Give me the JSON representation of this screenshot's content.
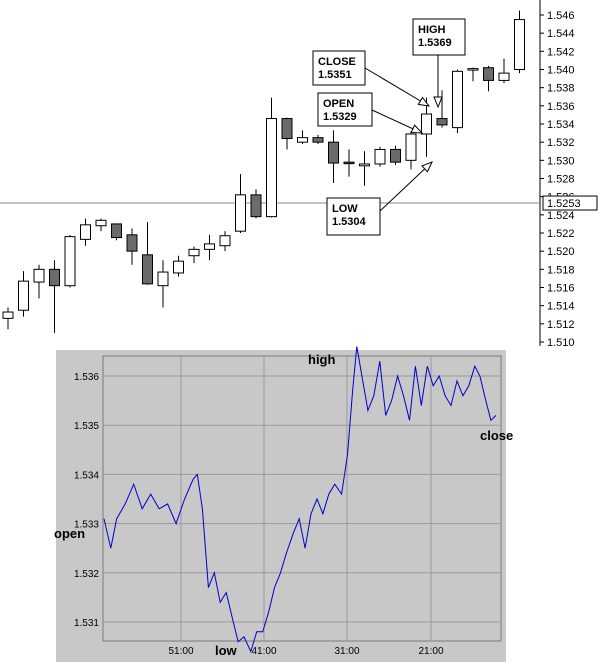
{
  "chart_data": [
    {
      "type": "candlestick",
      "y_ticks": [
        "1.546",
        "1.544",
        "1.542",
        "1.540",
        "1.538",
        "1.536",
        "1.534",
        "1.532",
        "1.530",
        "1.528",
        "1.526",
        "1.524",
        "1.522",
        "1.520",
        "1.518",
        "1.516",
        "1.514",
        "1.512",
        "1.510"
      ],
      "ylim": [
        1.51,
        1.547
      ],
      "price_marker": "1.5253",
      "candles": [
        {
          "o": 1.5126,
          "h": 1.5138,
          "l": 1.5114,
          "c": 1.5133
        },
        {
          "o": 1.5135,
          "h": 1.5178,
          "l": 1.5128,
          "c": 1.5167
        },
        {
          "o": 1.5166,
          "h": 1.5185,
          "l": 1.5148,
          "c": 1.518
        },
        {
          "o": 1.518,
          "h": 1.519,
          "l": 1.511,
          "c": 1.5162
        },
        {
          "o": 1.5162,
          "h": 1.5218,
          "l": 1.516,
          "c": 1.5216
        },
        {
          "o": 1.5213,
          "h": 1.5236,
          "l": 1.5206,
          "c": 1.5229
        },
        {
          "o": 1.5228,
          "h": 1.5236,
          "l": 1.5222,
          "c": 1.5234
        },
        {
          "o": 1.523,
          "h": 1.523,
          "l": 1.5212,
          "c": 1.5215
        },
        {
          "o": 1.5218,
          "h": 1.5225,
          "l": 1.5185,
          "c": 1.52
        },
        {
          "o": 1.5196,
          "h": 1.5232,
          "l": 1.5163,
          "c": 1.5164
        },
        {
          "o": 1.5162,
          "h": 1.519,
          "l": 1.5138,
          "c": 1.5177
        },
        {
          "o": 1.5176,
          "h": 1.5195,
          "l": 1.5172,
          "c": 1.5189
        },
        {
          "o": 1.5195,
          "h": 1.5205,
          "l": 1.5187,
          "c": 1.5202
        },
        {
          "o": 1.5202,
          "h": 1.5218,
          "l": 1.519,
          "c": 1.5208
        },
        {
          "o": 1.5206,
          "h": 1.5222,
          "l": 1.52,
          "c": 1.5217
        },
        {
          "o": 1.5222,
          "h": 1.5285,
          "l": 1.522,
          "c": 1.5262
        },
        {
          "o": 1.5262,
          "h": 1.5268,
          "l": 1.5236,
          "c": 1.5238
        },
        {
          "o": 1.5238,
          "h": 1.5369,
          "l": 1.5237,
          "c": 1.5346
        },
        {
          "o": 1.5346,
          "h": 1.5347,
          "l": 1.5312,
          "c": 1.5324
        },
        {
          "o": 1.532,
          "h": 1.5333,
          "l": 1.5318,
          "c": 1.5325
        },
        {
          "o": 1.5325,
          "h": 1.5328,
          "l": 1.5318,
          "c": 1.532
        },
        {
          "o": 1.532,
          "h": 1.5333,
          "l": 1.5275,
          "c": 1.5297
        },
        {
          "o": 1.5298,
          "h": 1.5312,
          "l": 1.5282,
          "c": 1.5297
        },
        {
          "o": 1.5294,
          "h": 1.531,
          "l": 1.5272,
          "c": 1.5296
        },
        {
          "o": 1.5296,
          "h": 1.5315,
          "l": 1.5293,
          "c": 1.5312
        },
        {
          "o": 1.5312,
          "h": 1.5316,
          "l": 1.5295,
          "c": 1.5298
        },
        {
          "o": 1.53,
          "h": 1.5332,
          "l": 1.529,
          "c": 1.5329
        },
        {
          "o": 1.5329,
          "h": 1.5369,
          "l": 1.5304,
          "c": 1.5351
        },
        {
          "o": 1.5346,
          "h": 1.5377,
          "l": 1.5336,
          "c": 1.5339
        },
        {
          "o": 1.5336,
          "h": 1.54,
          "l": 1.533,
          "c": 1.5398
        },
        {
          "o": 1.54,
          "h": 1.5402,
          "l": 1.5387,
          "c": 1.5401
        },
        {
          "o": 1.5402,
          "h": 1.5404,
          "l": 1.5376,
          "c": 1.5388
        },
        {
          "o": 1.5388,
          "h": 1.5412,
          "l": 1.5385,
          "c": 1.5396
        },
        {
          "o": 1.54,
          "h": 1.5465,
          "l": 1.5396,
          "c": 1.5455
        }
      ],
      "annotations": [
        {
          "name": "close",
          "title": "CLOSE",
          "value": "1.5351"
        },
        {
          "name": "high",
          "title": "HIGH",
          "value": "1.5369"
        },
        {
          "name": "open",
          "title": "OPEN",
          "value": "1.5329"
        },
        {
          "name": "low",
          "title": "LOW",
          "value": "1.5304"
        }
      ]
    },
    {
      "type": "line",
      "y_ticks": [
        "1.536",
        "1.535",
        "1.534",
        "1.533",
        "1.532",
        "1.531"
      ],
      "ylim": [
        1.5302,
        1.5367
      ],
      "x_ticks": [
        "51:00",
        "41:00",
        "31:00",
        "21:00"
      ],
      "labels": {
        "open": "open",
        "high": "high",
        "low": "low",
        "close": "close"
      },
      "grid": true,
      "series": [
        {
          "color": "#0000cc",
          "points": [
            [
              0,
              1.5331
            ],
            [
              0.8,
              1.5325
            ],
            [
              1.5,
              1.5331
            ],
            [
              2.5,
              1.5334
            ],
            [
              3.5,
              1.5338
            ],
            [
              4.5,
              1.5333
            ],
            [
              5.5,
              1.5336
            ],
            [
              6.5,
              1.5333
            ],
            [
              7.5,
              1.5334
            ],
            [
              8.5,
              1.533
            ],
            [
              9.5,
              1.5335
            ],
            [
              10.5,
              1.5339
            ],
            [
              11,
              1.534
            ],
            [
              11.6,
              1.5333
            ],
            [
              12.3,
              1.5317
            ],
            [
              13,
              1.532
            ],
            [
              13.7,
              1.5314
            ],
            [
              14.4,
              1.5316
            ],
            [
              15.1,
              1.5311
            ],
            [
              15.8,
              1.5306
            ],
            [
              16.5,
              1.5307
            ],
            [
              17.3,
              1.5304
            ],
            [
              18,
              1.5308
            ],
            [
              18.7,
              1.5308
            ],
            [
              19.4,
              1.5312
            ],
            [
              20.1,
              1.5317
            ],
            [
              20.8,
              1.532
            ],
            [
              21.5,
              1.5324
            ],
            [
              22.3,
              1.5328
            ],
            [
              23,
              1.5331
            ],
            [
              23.7,
              1.5325
            ],
            [
              24.4,
              1.5332
            ],
            [
              25.1,
              1.5335
            ],
            [
              25.8,
              1.5332
            ],
            [
              26.5,
              1.5336
            ],
            [
              27.2,
              1.5338
            ],
            [
              28,
              1.5336
            ],
            [
              28.7,
              1.5344
            ],
            [
              29.3,
              1.5357
            ],
            [
              29.8,
              1.5366
            ],
            [
              30.4,
              1.536
            ],
            [
              31.1,
              1.5353
            ],
            [
              31.8,
              1.5356
            ],
            [
              32.5,
              1.5363
            ],
            [
              33.2,
              1.5352
            ],
            [
              33.9,
              1.5355
            ],
            [
              34.6,
              1.536
            ],
            [
              35.3,
              1.5356
            ],
            [
              36,
              1.5351
            ],
            [
              36.7,
              1.5362
            ],
            [
              37.4,
              1.5354
            ],
            [
              38.1,
              1.5362
            ],
            [
              38.8,
              1.5358
            ],
            [
              39.5,
              1.536
            ],
            [
              40.2,
              1.5356
            ],
            [
              40.9,
              1.5354
            ],
            [
              41.6,
              1.5359
            ],
            [
              42.3,
              1.5356
            ],
            [
              43,
              1.5358
            ],
            [
              43.7,
              1.5362
            ],
            [
              44.3,
              1.536
            ],
            [
              45,
              1.5355
            ],
            [
              45.6,
              1.5351
            ],
            [
              46.2,
              1.5352
            ]
          ]
        }
      ]
    }
  ]
}
